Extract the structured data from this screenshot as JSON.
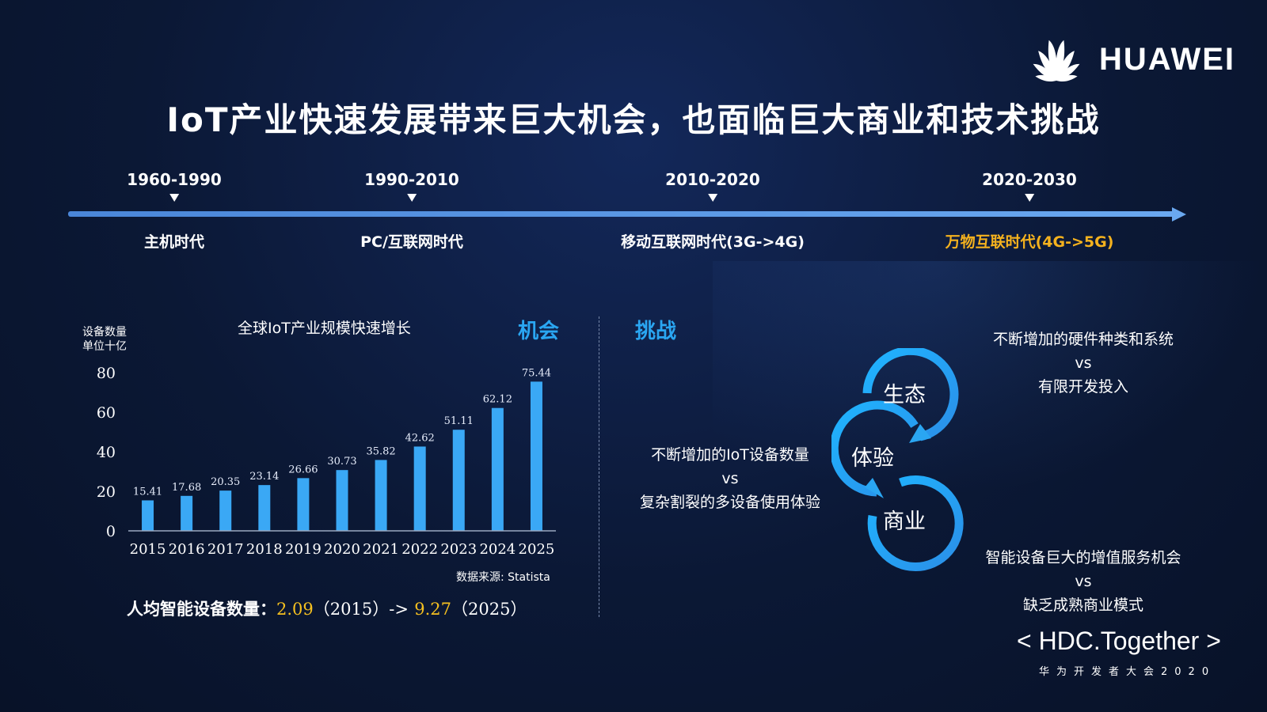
{
  "brand": {
    "name": "HUAWEI"
  },
  "title": "IoT产业快速发展带来巨大机会，也面临巨大商业和技术挑战",
  "timeline": [
    {
      "years": "1960-1990",
      "name": "主机时代",
      "highlight": false
    },
    {
      "years": "1990-2010",
      "name": "PC/互联网时代",
      "highlight": false
    },
    {
      "years": "2010-2020",
      "name": "移动互联网时代(3G->4G)",
      "highlight": false
    },
    {
      "years": "2020-2030",
      "name": "万物互联时代(4G->5G)",
      "highlight": true
    }
  ],
  "colors": {
    "accent": "#2aa6f2",
    "highlight": "#f5b21e",
    "bar": "#3aa8f5"
  },
  "opportunity": {
    "label": "机会",
    "unit_line1": "设备数量",
    "unit_line2": "单位十亿",
    "source": "数据来源: Statista",
    "per_capita_label": "人均智能设备数量：",
    "per_capita_from": "2.09",
    "per_capita_from_year": "（2015）",
    "arrow": "->",
    "per_capita_to": "9.27",
    "per_capita_to_year": "（2025）"
  },
  "chart_data": {
    "type": "bar",
    "title": "全球IoT产业规模快速增长",
    "categories": [
      "2015",
      "2016",
      "2017",
      "2018",
      "2019",
      "2020",
      "2021",
      "2022",
      "2023",
      "2024",
      "2025"
    ],
    "values": [
      15.41,
      17.68,
      20.35,
      23.14,
      26.66,
      30.73,
      35.82,
      42.62,
      51.11,
      62.12,
      75.44
    ],
    "value_labels": [
      "15.41",
      "17.68",
      "20.35",
      "23.14",
      "26.66",
      "30.73",
      "35.82",
      "42.62",
      "51.11",
      "62.12",
      "75.44"
    ],
    "y_ticks": [
      0,
      20,
      40,
      60,
      80
    ],
    "ylim": [
      0,
      80
    ],
    "xlabel": "",
    "ylabel": "设备数量 单位十亿",
    "grid": false
  },
  "challenge": {
    "label": "挑战",
    "cycle": [
      "生态",
      "体验",
      "商业"
    ],
    "items": [
      {
        "top": "不断增加的硬件种类和系统",
        "vs": "vs",
        "bottom": "有限开发投入"
      },
      {
        "top": "不断增加的IoT设备数量",
        "vs": "vs",
        "bottom": "复杂割裂的多设备使用体验"
      },
      {
        "top": "智能设备巨大的增值服务机会",
        "vs": "vs",
        "bottom": "缺乏成熟商业模式"
      }
    ]
  },
  "event": {
    "name": "< HDC.Together >",
    "subtitle": "华为开发者大会2020"
  }
}
